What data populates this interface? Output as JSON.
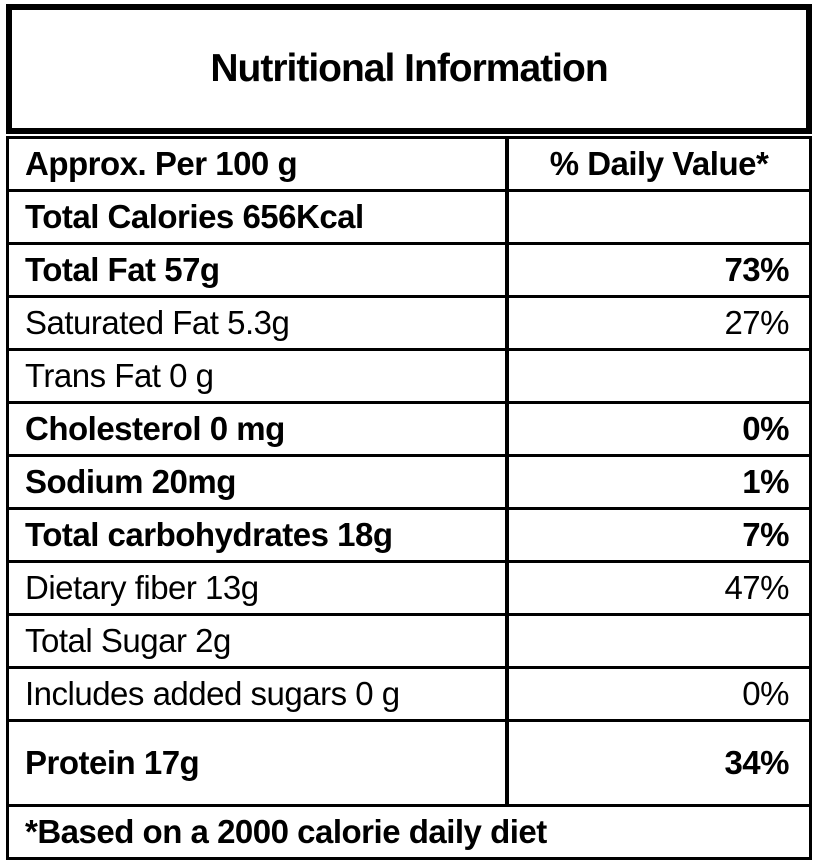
{
  "title": "Nutritional Information",
  "table": {
    "header": {
      "label": "Approx. Per 100 g",
      "value": "% Daily Value*"
    },
    "rows": [
      {
        "label": "Total Calories 656Kcal",
        "value": "",
        "bold": true,
        "tall": false
      },
      {
        "label": "Total Fat 57g",
        "value": "73%",
        "bold": true,
        "tall": false
      },
      {
        "label": "Saturated Fat 5.3g",
        "value": "27%",
        "bold": false,
        "tall": false
      },
      {
        "label": "Trans Fat 0 g",
        "value": "",
        "bold": false,
        "tall": false
      },
      {
        "label": "Cholesterol 0 mg",
        "value": "0%",
        "bold": true,
        "tall": false
      },
      {
        "label": "Sodium 20mg",
        "value": "1%",
        "bold": true,
        "tall": false
      },
      {
        "label": "Total carbohydrates 18g",
        "value": "7%",
        "bold": true,
        "tall": false
      },
      {
        "label": "Dietary fiber 13g",
        "value": "47%",
        "bold": false,
        "tall": false
      },
      {
        "label": "Total Sugar 2g",
        "value": "",
        "bold": false,
        "tall": false
      },
      {
        "label": "Includes added sugars 0 g",
        "value": "0%",
        "bold": false,
        "tall": false
      },
      {
        "label": "Protein 17g",
        "value": "34%",
        "bold": true,
        "tall": true
      }
    ]
  },
  "footnote": "*Based on a 2000 calorie daily diet",
  "colors": {
    "border": "#000000",
    "text": "#000000",
    "background": "#ffffff"
  }
}
